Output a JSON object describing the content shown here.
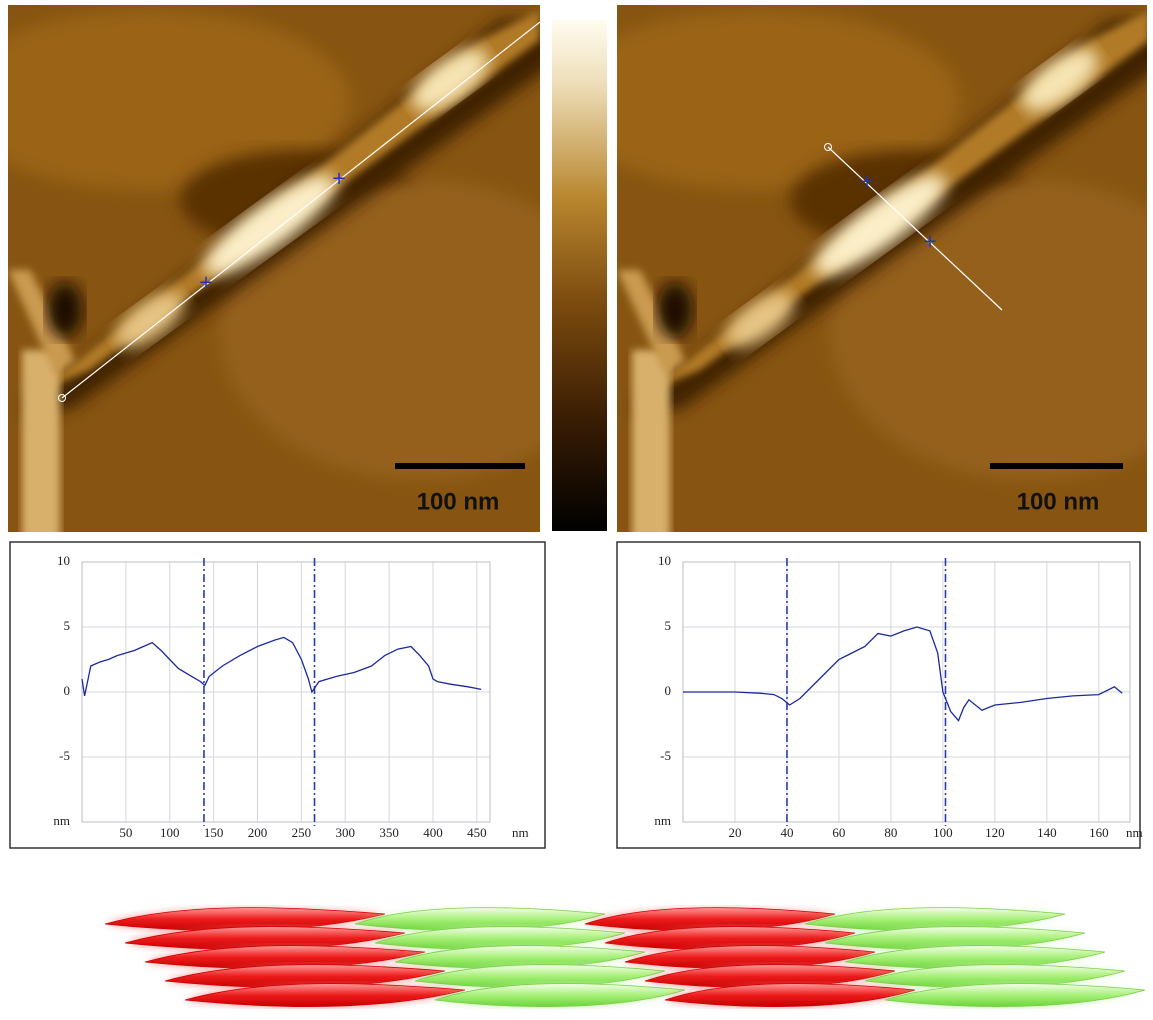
{
  "images": [
    {
      "scale_bar": "100 nm"
    },
    {
      "scale_bar": "100 nm"
    }
  ],
  "chart_data": [
    {
      "type": "line",
      "x_label": "nm",
      "y_label": "nm",
      "color": "#1c2a9c",
      "cursor_color": "#2a3bb0",
      "grid": true,
      "xlim": [
        0,
        465
      ],
      "ylim": [
        -10,
        10
      ],
      "xticks": [
        50,
        100,
        150,
        200,
        250,
        300,
        350,
        400,
        450
      ],
      "yticks": [
        -5,
        0,
        5,
        10
      ],
      "cursors": [
        139,
        265
      ],
      "x": [
        0,
        3,
        10,
        20,
        30,
        40,
        50,
        60,
        70,
        80,
        90,
        100,
        110,
        125,
        135,
        140,
        145,
        160,
        180,
        200,
        220,
        230,
        240,
        250,
        258,
        262,
        270,
        290,
        310,
        330,
        345,
        360,
        375,
        385,
        395,
        400,
        405,
        420,
        440,
        455
      ],
      "values": [
        1,
        -0.3,
        2,
        2.3,
        2.5,
        2.8,
        3,
        3.2,
        3.5,
        3.8,
        3.2,
        2.5,
        1.8,
        1.2,
        0.8,
        0.5,
        1.2,
        2,
        2.8,
        3.5,
        4,
        4.2,
        3.8,
        2.5,
        1,
        0,
        0.8,
        1.2,
        1.5,
        2,
        2.8,
        3.3,
        3.5,
        2.8,
        2,
        1,
        0.8,
        0.6,
        0.4,
        0.2
      ]
    },
    {
      "type": "line",
      "x_label": "nm",
      "y_label": "nm",
      "color": "#1c2a9c",
      "cursor_color": "#2a3bb0",
      "grid": true,
      "xlim": [
        0,
        172
      ],
      "ylim": [
        -10,
        10
      ],
      "xticks": [
        20,
        40,
        60,
        80,
        100,
        120,
        140,
        160
      ],
      "yticks": [
        -5,
        0,
        5,
        10
      ],
      "cursors": [
        40,
        101
      ],
      "x": [
        0,
        10,
        20,
        30,
        35,
        38,
        41,
        45,
        50,
        55,
        60,
        65,
        70,
        75,
        80,
        85,
        90,
        95,
        98,
        100,
        103,
        106,
        108,
        110,
        115,
        120,
        130,
        140,
        150,
        160,
        166,
        169
      ],
      "values": [
        0,
        0,
        0,
        -0.1,
        -0.2,
        -0.5,
        -1,
        -0.5,
        0.5,
        1.5,
        2.5,
        3,
        3.5,
        4.5,
        4.3,
        4.7,
        5,
        4.7,
        3,
        0,
        -1.5,
        -2.2,
        -1.2,
        -0.6,
        -1.4,
        -1,
        -0.8,
        -0.5,
        -0.3,
        -0.2,
        0.4,
        -0.1
      ]
    }
  ]
}
